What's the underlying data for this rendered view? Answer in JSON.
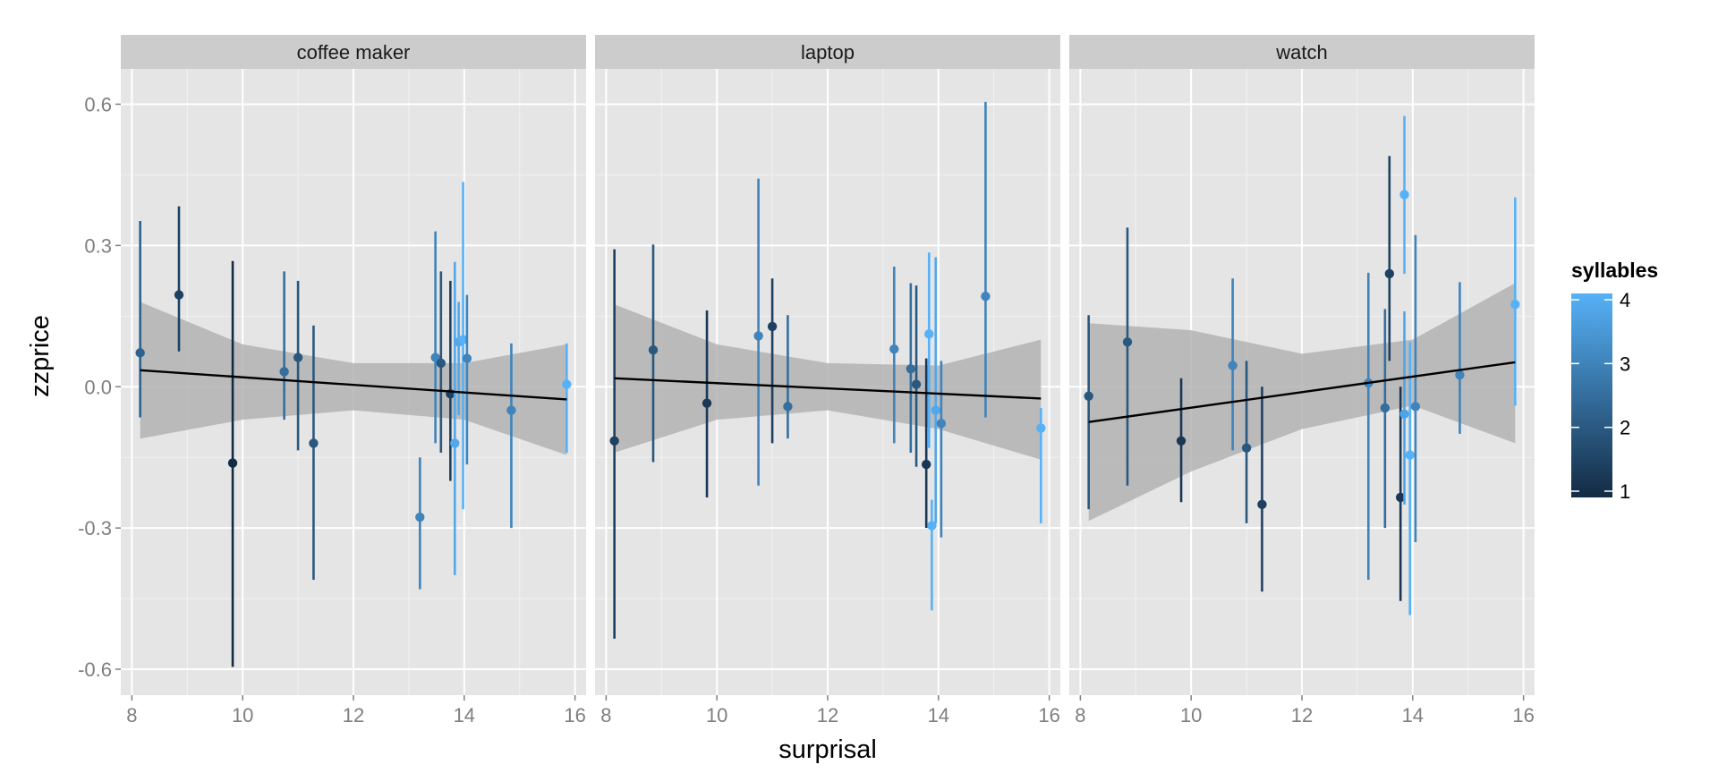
{
  "chart_data": {
    "type": "scatter",
    "xlabel": "surprisal",
    "ylabel": "zzprice",
    "xlim": [
      7.8,
      16.2
    ],
    "ylim": [
      -0.655,
      0.675
    ],
    "x_ticks": [
      8,
      10,
      12,
      14,
      16
    ],
    "x_tick_labels": [
      "8",
      "10",
      "12",
      "14",
      "16"
    ],
    "y_ticks": [
      0.6,
      0.3,
      0.0,
      -0.3,
      -0.6
    ],
    "y_tick_labels": [
      "0.6",
      "0.3",
      "0.0",
      "-0.3",
      "-0.6"
    ],
    "grid": true,
    "legend": {
      "title": "syllables",
      "position": "right",
      "min": 1,
      "max": 4,
      "ticks": [
        1,
        2,
        3,
        4
      ],
      "tick_labels": [
        "1",
        "2",
        "3",
        "4"
      ],
      "color_low": "#132b43",
      "color_high": "#56b1f7"
    },
    "colors": {
      "panel_bg": "#e5e5e5",
      "strip_bg": "#cccccc",
      "grid": "#ffffff",
      "ribbon": "#b3b3b3",
      "fit_line": "#000000"
    },
    "panels": [
      {
        "label": "coffee maker",
        "fit": {
          "x": [
            8.15,
            15.85
          ],
          "y": [
            0.035,
            -0.027
          ]
        },
        "ribbon": {
          "x": [
            8.15,
            10,
            12,
            14,
            15.85
          ],
          "upper": [
            0.18,
            0.09,
            0.05,
            0.05,
            0.09
          ],
          "lower": [
            -0.11,
            -0.07,
            -0.05,
            -0.07,
            -0.145
          ]
        },
        "points": [
          {
            "x": 8.15,
            "y": 0.072,
            "ymin": -0.065,
            "ymax": 0.352,
            "syllables": 2.2
          },
          {
            "x": 8.85,
            "y": 0.195,
            "ymin": 0.075,
            "ymax": 0.383,
            "syllables": 1.5
          },
          {
            "x": 9.82,
            "y": -0.162,
            "ymin": -0.595,
            "ymax": 0.267,
            "syllables": 1.0
          },
          {
            "x": 10.75,
            "y": 0.032,
            "ymin": -0.07,
            "ymax": 0.245,
            "syllables": 2.5
          },
          {
            "x": 11.0,
            "y": 0.062,
            "ymin": -0.135,
            "ymax": 0.225,
            "syllables": 2.0
          },
          {
            "x": 11.28,
            "y": -0.12,
            "ymin": -0.41,
            "ymax": 0.13,
            "syllables": 2.0
          },
          {
            "x": 13.2,
            "y": -0.277,
            "ymin": -0.43,
            "ymax": -0.15,
            "syllables": 3.0
          },
          {
            "x": 13.48,
            "y": 0.062,
            "ymin": -0.12,
            "ymax": 0.33,
            "syllables": 3.0
          },
          {
            "x": 13.58,
            "y": 0.05,
            "ymin": -0.14,
            "ymax": 0.245,
            "syllables": 2.0
          },
          {
            "x": 13.75,
            "y": -0.015,
            "ymin": -0.2,
            "ymax": 0.225,
            "syllables": 1.5
          },
          {
            "x": 13.83,
            "y": -0.12,
            "ymin": -0.4,
            "ymax": 0.265,
            "syllables": 3.8
          },
          {
            "x": 13.9,
            "y": 0.095,
            "ymin": -0.06,
            "ymax": 0.18,
            "syllables": 3.8
          },
          {
            "x": 13.98,
            "y": 0.1,
            "ymin": -0.26,
            "ymax": 0.435,
            "syllables": 4.0
          },
          {
            "x": 14.05,
            "y": 0.06,
            "ymin": -0.165,
            "ymax": 0.195,
            "syllables": 3.0
          },
          {
            "x": 14.85,
            "y": -0.05,
            "ymin": -0.3,
            "ymax": 0.092,
            "syllables": 3.0
          },
          {
            "x": 15.85,
            "y": 0.005,
            "ymin": -0.14,
            "ymax": 0.092,
            "syllables": 4.0
          }
        ]
      },
      {
        "label": "laptop",
        "fit": {
          "x": [
            8.15,
            15.85
          ],
          "y": [
            0.018,
            -0.025
          ]
        },
        "ribbon": {
          "x": [
            8.15,
            10,
            12,
            14,
            15.85
          ],
          "upper": [
            0.175,
            0.09,
            0.05,
            0.045,
            0.1
          ],
          "lower": [
            -0.14,
            -0.07,
            -0.05,
            -0.09,
            -0.155
          ]
        },
        "points": [
          {
            "x": 8.15,
            "y": -0.115,
            "ymin": -0.535,
            "ymax": 0.292,
            "syllables": 1.5
          },
          {
            "x": 8.85,
            "y": 0.078,
            "ymin": -0.16,
            "ymax": 0.302,
            "syllables": 2.0
          },
          {
            "x": 9.82,
            "y": -0.035,
            "ymin": -0.235,
            "ymax": 0.162,
            "syllables": 1.3
          },
          {
            "x": 10.75,
            "y": 0.108,
            "ymin": -0.21,
            "ymax": 0.442,
            "syllables": 3.0
          },
          {
            "x": 11.0,
            "y": 0.128,
            "ymin": -0.12,
            "ymax": 0.23,
            "syllables": 1.5
          },
          {
            "x": 11.28,
            "y": -0.042,
            "ymin": -0.11,
            "ymax": 0.152,
            "syllables": 2.5
          },
          {
            "x": 13.2,
            "y": 0.08,
            "ymin": -0.12,
            "ymax": 0.255,
            "syllables": 3.0
          },
          {
            "x": 13.5,
            "y": 0.038,
            "ymin": -0.14,
            "ymax": 0.22,
            "syllables": 2.5
          },
          {
            "x": 13.6,
            "y": 0.005,
            "ymin": -0.17,
            "ymax": 0.215,
            "syllables": 2.0
          },
          {
            "x": 13.78,
            "y": -0.165,
            "ymin": -0.3,
            "ymax": 0.06,
            "syllables": 1.3
          },
          {
            "x": 13.83,
            "y": 0.112,
            "ymin": -0.13,
            "ymax": 0.285,
            "syllables": 4.0
          },
          {
            "x": 13.88,
            "y": -0.295,
            "ymin": -0.475,
            "ymax": -0.24,
            "syllables": 4.0
          },
          {
            "x": 13.95,
            "y": -0.05,
            "ymin": -0.29,
            "ymax": 0.275,
            "syllables": 3.8
          },
          {
            "x": 14.05,
            "y": -0.078,
            "ymin": -0.32,
            "ymax": 0.055,
            "syllables": 3.0
          },
          {
            "x": 14.85,
            "y": 0.192,
            "ymin": -0.065,
            "ymax": 0.605,
            "syllables": 3.0
          },
          {
            "x": 15.85,
            "y": -0.088,
            "ymin": -0.29,
            "ymax": -0.045,
            "syllables": 4.0
          }
        ]
      },
      {
        "label": "watch",
        "fit": {
          "x": [
            8.15,
            15.85
          ],
          "y": [
            -0.075,
            0.052
          ]
        },
        "ribbon": {
          "x": [
            8.15,
            10,
            12,
            14,
            15.85
          ],
          "upper": [
            0.135,
            0.12,
            0.07,
            0.1,
            0.22
          ],
          "lower": [
            -0.285,
            -0.18,
            -0.09,
            -0.04,
            -0.12
          ]
        },
        "points": [
          {
            "x": 8.15,
            "y": -0.02,
            "ymin": -0.26,
            "ymax": 0.152,
            "syllables": 2.0
          },
          {
            "x": 8.85,
            "y": 0.095,
            "ymin": -0.21,
            "ymax": 0.338,
            "syllables": 2.0
          },
          {
            "x": 9.82,
            "y": -0.115,
            "ymin": -0.245,
            "ymax": 0.018,
            "syllables": 1.3
          },
          {
            "x": 10.75,
            "y": 0.045,
            "ymin": -0.135,
            "ymax": 0.23,
            "syllables": 3.0
          },
          {
            "x": 11.0,
            "y": -0.13,
            "ymin": -0.29,
            "ymax": 0.055,
            "syllables": 2.0
          },
          {
            "x": 11.28,
            "y": -0.25,
            "ymin": -0.435,
            "ymax": 0.0,
            "syllables": 1.5
          },
          {
            "x": 13.2,
            "y": 0.008,
            "ymin": -0.41,
            "ymax": 0.242,
            "syllables": 3.0
          },
          {
            "x": 13.5,
            "y": -0.045,
            "ymin": -0.3,
            "ymax": 0.165,
            "syllables": 2.5
          },
          {
            "x": 13.58,
            "y": 0.24,
            "ymin": 0.055,
            "ymax": 0.49,
            "syllables": 1.5
          },
          {
            "x": 13.78,
            "y": -0.235,
            "ymin": -0.455,
            "ymax": 0.0,
            "syllables": 1.3
          },
          {
            "x": 13.85,
            "y": 0.408,
            "ymin": 0.24,
            "ymax": 0.575,
            "syllables": 4.0
          },
          {
            "x": 13.85,
            "y": -0.058,
            "ymin": -0.25,
            "ymax": 0.16,
            "syllables": 3.7
          },
          {
            "x": 13.95,
            "y": -0.145,
            "ymin": -0.485,
            "ymax": 0.095,
            "syllables": 4.0
          },
          {
            "x": 14.05,
            "y": -0.042,
            "ymin": -0.33,
            "ymax": 0.322,
            "syllables": 3.0
          },
          {
            "x": 14.85,
            "y": 0.025,
            "ymin": -0.1,
            "ymax": 0.222,
            "syllables": 3.0
          },
          {
            "x": 15.85,
            "y": 0.175,
            "ymin": -0.04,
            "ymax": 0.402,
            "syllables": 4.0
          }
        ]
      }
    ]
  }
}
